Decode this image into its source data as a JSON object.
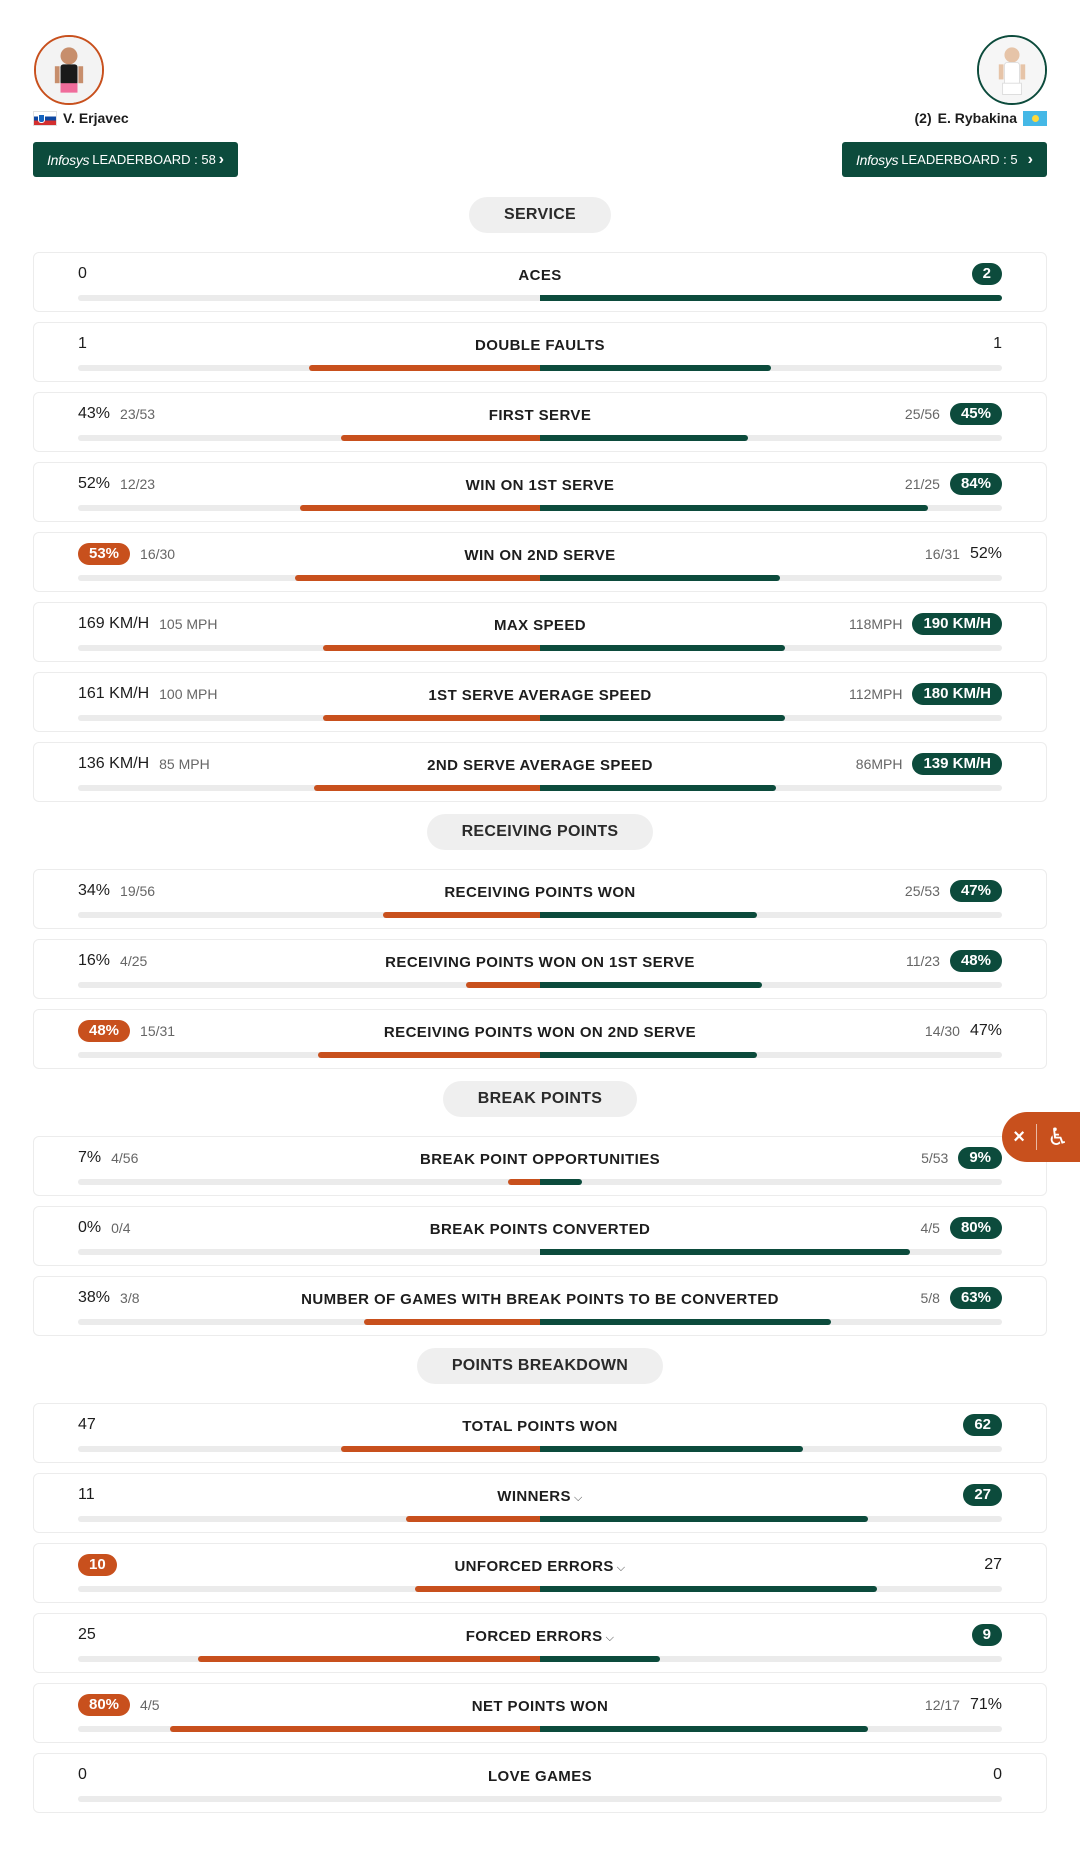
{
  "players": {
    "p1": {
      "name": "V. Erjavec",
      "seed": "",
      "flag": "slovenia-flag",
      "leaderboard_brand": "Infosys",
      "leaderboard_label": "LEADERBOARD : 58"
    },
    "p2": {
      "name": "E. Rybakina",
      "seed": "(2)",
      "flag": "kazakhstan-flag",
      "leaderboard_brand": "Infosys",
      "leaderboard_label": "LEADERBOARD : 5"
    }
  },
  "colors": {
    "p1": "#c8501d",
    "p2": "#0c4b3c"
  },
  "sections": [
    {
      "title": "SERVICE",
      "rows": [
        {
          "label": "ACES",
          "left": "0",
          "left_sub": "",
          "right": "2",
          "right_sub": "",
          "lead": "right",
          "share_l": 0,
          "share_r": 1.0
        },
        {
          "label": "DOUBLE FAULTS",
          "left": "1",
          "left_sub": "",
          "right": "1",
          "right_sub": "",
          "lead": "",
          "share_l": 0.5,
          "share_r": 0.5
        },
        {
          "label": "FIRST SERVE",
          "left": "43%",
          "left_sub": "23/53",
          "right": "45%",
          "right_sub": "25/56",
          "lead": "right",
          "share_l": 0.43,
          "share_r": 0.45
        },
        {
          "label": "WIN ON 1ST SERVE",
          "left": "52%",
          "left_sub": "12/23",
          "right": "84%",
          "right_sub": "21/25",
          "lead": "right",
          "share_l": 0.52,
          "share_r": 0.84
        },
        {
          "label": "WIN ON 2ND SERVE",
          "left": "53%",
          "left_sub": "16/30",
          "right": "52%",
          "right_sub": "16/31",
          "lead": "left",
          "share_l": 0.53,
          "share_r": 0.52
        },
        {
          "label": "MAX SPEED",
          "left": "169 KM/H",
          "left_sub": "105 MPH",
          "right": "190 KM/H",
          "right_sub": "118MPH",
          "lead": "right",
          "share_l": 0.47,
          "share_r": 0.53
        },
        {
          "label": "1ST SERVE AVERAGE SPEED",
          "left": "161 KM/H",
          "left_sub": "100 MPH",
          "right": "180 KM/H",
          "right_sub": "112MPH",
          "lead": "right",
          "share_l": 0.47,
          "share_r": 0.53
        },
        {
          "label": "2ND SERVE AVERAGE SPEED",
          "left": "136 KM/H",
          "left_sub": "85 MPH",
          "right": "139 KM/H",
          "right_sub": "86MPH",
          "lead": "right",
          "share_l": 0.49,
          "share_r": 0.51
        }
      ]
    },
    {
      "title": "RECEIVING POINTS",
      "rows": [
        {
          "label": "RECEIVING POINTS WON",
          "left": "34%",
          "left_sub": "19/56",
          "right": "47%",
          "right_sub": "25/53",
          "lead": "right",
          "share_l": 0.34,
          "share_r": 0.47
        },
        {
          "label": "RECEIVING POINTS WON ON 1ST SERVE",
          "left": "16%",
          "left_sub": "4/25",
          "right": "48%",
          "right_sub": "11/23",
          "lead": "right",
          "share_l": 0.16,
          "share_r": 0.48
        },
        {
          "label": "RECEIVING POINTS WON ON 2ND SERVE",
          "left": "48%",
          "left_sub": "15/31",
          "right": "47%",
          "right_sub": "14/30",
          "lead": "left",
          "share_l": 0.48,
          "share_r": 0.47
        }
      ]
    },
    {
      "title": "BREAK POINTS",
      "rows": [
        {
          "label": "BREAK POINT OPPORTUNITIES",
          "left": "7%",
          "left_sub": "4/56",
          "right": "9%",
          "right_sub": "5/53",
          "lead": "right",
          "share_l": 0.07,
          "share_r": 0.09
        },
        {
          "label": "BREAK POINTS CONVERTED",
          "left": "0%",
          "left_sub": "0/4",
          "right": "80%",
          "right_sub": "4/5",
          "lead": "right",
          "share_l": 0,
          "share_r": 0.8
        },
        {
          "label": "NUMBER OF GAMES WITH BREAK POINTS TO BE CONVERTED",
          "left": "38%",
          "left_sub": "3/8",
          "right": "63%",
          "right_sub": "5/8",
          "lead": "right",
          "share_l": 0.38,
          "share_r": 0.63
        }
      ]
    },
    {
      "title": "POINTS BREAKDOWN",
      "rows": [
        {
          "label": "TOTAL POINTS WON",
          "left": "47",
          "left_sub": "",
          "right": "62",
          "right_sub": "",
          "lead": "right",
          "share_l": 0.43,
          "share_r": 0.57
        },
        {
          "label": "WINNERS",
          "caret": true,
          "left": "11",
          "left_sub": "",
          "right": "27",
          "right_sub": "",
          "lead": "right",
          "share_l": 0.29,
          "share_r": 0.71
        },
        {
          "label": "UNFORCED ERRORS",
          "caret": true,
          "left": "10",
          "left_sub": "",
          "right": "27",
          "right_sub": "",
          "lead": "left",
          "share_l": 0.27,
          "share_r": 0.73
        },
        {
          "label": "FORCED ERRORS",
          "caret": true,
          "left": "25",
          "left_sub": "",
          "right": "9",
          "right_sub": "",
          "lead": "right",
          "share_l": 0.74,
          "share_r": 0.26
        },
        {
          "label": "NET POINTS WON",
          "left": "80%",
          "left_sub": "4/5",
          "right": "71%",
          "right_sub": "12/17",
          "lead": "left",
          "share_l": 0.8,
          "share_r": 0.71
        },
        {
          "label": "LOVE GAMES",
          "left": "0",
          "left_sub": "",
          "right": "0",
          "right_sub": "",
          "lead": "",
          "share_l": 0,
          "share_r": 0
        }
      ]
    }
  ],
  "accessibility_widget": {
    "close_icon": "close-icon",
    "person_icon": "accessibility-icon"
  }
}
